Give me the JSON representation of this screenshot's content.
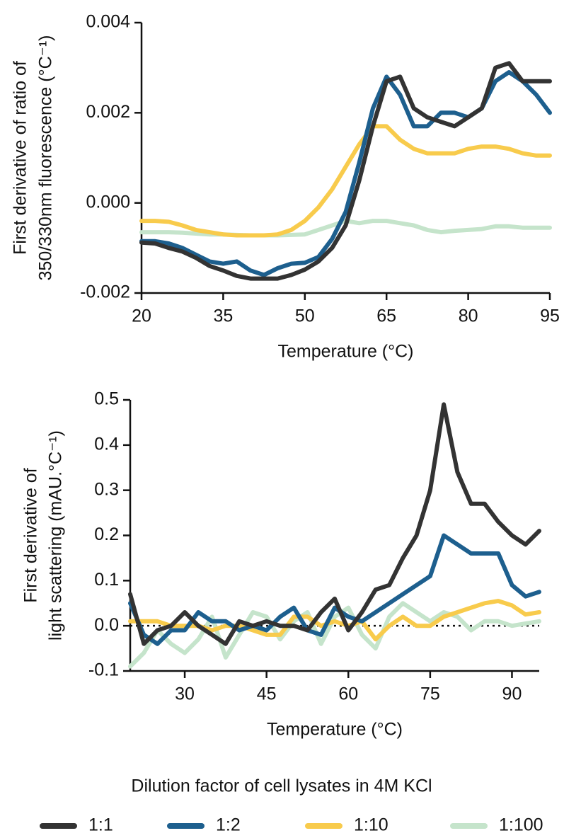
{
  "chart_data": [
    {
      "type": "line",
      "xlabel": "Temperature (°C)",
      "ylabel": [
        "First derivative of ratio of",
        "350/330nm fluorescence (°C⁻¹)"
      ],
      "x": [
        20,
        22.5,
        25,
        27.5,
        30,
        32.5,
        35,
        37.5,
        40,
        42.5,
        45,
        47.5,
        50,
        52.5,
        55,
        57.5,
        60,
        62.5,
        65,
        67.5,
        70,
        72.5,
        75,
        77.5,
        80,
        82.5,
        85,
        87.5,
        90,
        92.5,
        95
      ],
      "xlim": [
        20,
        95
      ],
      "xticks": [
        20,
        35,
        50,
        65,
        80,
        95
      ],
      "ylim": [
        -0.002,
        0.004
      ],
      "yticks": [
        {
          "value": -0.002,
          "label": "-0.002"
        },
        {
          "value": 0,
          "label": "0.000"
        },
        {
          "value": 0.002,
          "label": "0.002"
        },
        {
          "value": 0.004,
          "label": "0.004"
        }
      ],
      "series": [
        {
          "name": "1:1",
          "color": "#333333",
          "values": [
            -0.00088,
            -0.0009,
            -0.001,
            -0.00108,
            -0.00122,
            -0.0014,
            -0.0015,
            -0.00162,
            -0.00168,
            -0.00168,
            -0.00168,
            -0.0016,
            -0.00148,
            -0.0013,
            -0.001,
            -0.0005,
            0.0005,
            0.0017,
            0.0027,
            0.0028,
            0.0021,
            0.0019,
            0.0018,
            0.0017,
            0.0019,
            0.0021,
            0.003,
            0.0031,
            0.0027,
            0.0027,
            0.0027
          ]
        },
        {
          "name": "1:2",
          "color": "#1d5f8e",
          "values": [
            -0.00085,
            -0.00085,
            -0.0009,
            -0.001,
            -0.00115,
            -0.0013,
            -0.00135,
            -0.0013,
            -0.0015,
            -0.0016,
            -0.00145,
            -0.00135,
            -0.00133,
            -0.0012,
            -0.0008,
            -0.0002,
            0.0009,
            0.0021,
            0.0028,
            0.0024,
            0.0017,
            0.0017,
            0.002,
            0.002,
            0.0019,
            0.0021,
            0.0027,
            0.0029,
            0.0027,
            0.0024,
            0.002
          ]
        },
        {
          "name": "1:10",
          "color": "#f8cb4c",
          "values": [
            -0.0004,
            -0.0004,
            -0.00042,
            -0.0005,
            -0.0006,
            -0.00065,
            -0.0007,
            -0.00072,
            -0.00072,
            -0.00072,
            -0.0007,
            -0.0006,
            -0.0004,
            -0.0001,
            0.0003,
            0.0008,
            0.0013,
            0.0017,
            0.0017,
            0.0014,
            0.0012,
            0.0011,
            0.0011,
            0.0011,
            0.0012,
            0.00125,
            0.00125,
            0.0012,
            0.0011,
            0.00105,
            0.00105
          ]
        },
        {
          "name": "1:100",
          "color": "#c5e4cb",
          "values": [
            -0.00065,
            -0.00065,
            -0.00065,
            -0.00066,
            -0.00068,
            -0.0007,
            -0.0007,
            -0.00071,
            -0.00072,
            -0.00072,
            -0.00072,
            -0.00071,
            -0.0007,
            -0.0006,
            -0.0005,
            -0.0004,
            -0.00045,
            -0.0004,
            -0.0004,
            -0.00045,
            -0.0005,
            -0.0006,
            -0.00065,
            -0.00062,
            -0.0006,
            -0.00058,
            -0.00052,
            -0.00052,
            -0.00055,
            -0.00055,
            -0.00055
          ]
        }
      ]
    },
    {
      "type": "line",
      "xlabel": "Temperature (°C)",
      "ylabel": [
        "First derivative of",
        "light scattering (mAU.°C⁻¹)"
      ],
      "x": [
        20,
        22.5,
        25,
        27.5,
        30,
        32.5,
        35,
        37.5,
        40,
        42.5,
        45,
        47.5,
        50,
        52.5,
        55,
        57.5,
        60,
        62.5,
        65,
        67.5,
        70,
        72.5,
        75,
        77.5,
        80,
        82.5,
        85,
        87.5,
        90,
        92.5,
        95
      ],
      "xlim": [
        20,
        95
      ],
      "xticks": [
        30,
        45,
        60,
        75,
        90
      ],
      "ylim": [
        -0.1,
        0.5
      ],
      "yticks": [
        -0.1,
        {
          "value": 0,
          "label": "0.0"
        },
        0.1,
        0.2,
        0.3,
        0.4,
        0.5
      ],
      "zero_line": true,
      "series": [
        {
          "color": "#333333",
          "values": [
            0.07,
            -0.04,
            -0.01,
            0,
            0.03,
            0,
            -0.02,
            -0.04,
            0.01,
            0,
            0.01,
            0,
            0,
            -0.01,
            0.03,
            0.06,
            -0.01,
            0.03,
            0.08,
            0.09,
            0.15,
            0.2,
            0.3,
            0.49,
            0.34,
            0.27,
            0.27,
            0.23,
            0.2,
            0.18,
            0.21
          ]
        },
        {
          "color": "#1d5f8e",
          "values": [
            0.05,
            -0.02,
            -0.04,
            -0.01,
            -0.01,
            0.03,
            0.01,
            0.01,
            -0.01,
            0,
            -0.01,
            0.02,
            0.04,
            -0.01,
            -0.02,
            0.04,
            0.02,
            0.01,
            0.03,
            0.05,
            0.07,
            0.09,
            0.11,
            0.2,
            0.18,
            0.16,
            0.16,
            0.16,
            0.09,
            0.065,
            0.075
          ]
        },
        {
          "color": "#f8cb4c",
          "values": [
            0.01,
            0.01,
            0.01,
            0,
            0,
            0,
            -0.01,
            0,
            0,
            -0.01,
            -0.02,
            -0.02,
            0.02,
            0.02,
            0,
            0.01,
            0,
            0.01,
            -0.03,
            0,
            0.02,
            0,
            0,
            0.02,
            0.03,
            0.04,
            0.05,
            0.055,
            0.045,
            0.025,
            0.03
          ]
        },
        {
          "color": "#c5e4cb",
          "values": [
            -0.09,
            -0.06,
            -0.01,
            -0.04,
            -0.06,
            -0.03,
            0.02,
            -0.07,
            -0.02,
            0.03,
            0.02,
            -0.03,
            0.01,
            0.03,
            -0.04,
            0.02,
            0.04,
            -0.02,
            -0.05,
            0.02,
            0.05,
            0.03,
            0.01,
            0.03,
            0.02,
            -0.01,
            0.01,
            0.01,
            0,
            0.005,
            0.01
          ]
        }
      ]
    }
  ],
  "legend": {
    "title": "Dilution factor of cell lysates in 4M KCl"
  }
}
